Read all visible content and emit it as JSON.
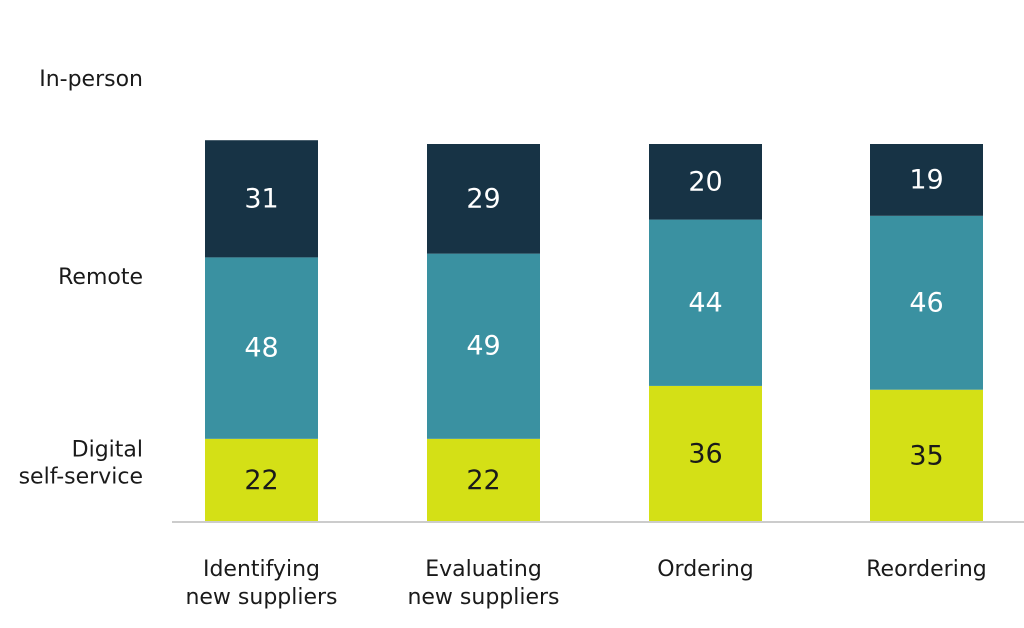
{
  "chart_data": {
    "type": "bar",
    "stacked": true,
    "categories": [
      [
        "Identifying",
        "new suppliers"
      ],
      [
        "Evaluating",
        "new suppliers"
      ],
      [
        "Ordering"
      ],
      [
        "Reordering"
      ]
    ],
    "series": [
      {
        "name": "Digital self-service",
        "label_lines": [
          "Digital",
          "self-service"
        ],
        "color": "#d4e016",
        "text_color": "#1a1a1a",
        "values": [
          22,
          22,
          36,
          35
        ]
      },
      {
        "name": "Remote",
        "label_lines": [
          "Remote"
        ],
        "color": "#3a91a1",
        "text_color": "#ffffff",
        "values": [
          48,
          49,
          44,
          46
        ]
      },
      {
        "name": "In-person",
        "label_lines": [
          "In-person"
        ],
        "color": "#173345",
        "text_color": "#ffffff",
        "values": [
          31,
          29,
          20,
          19
        ]
      }
    ],
    "axis_color": "#cccccc"
  }
}
